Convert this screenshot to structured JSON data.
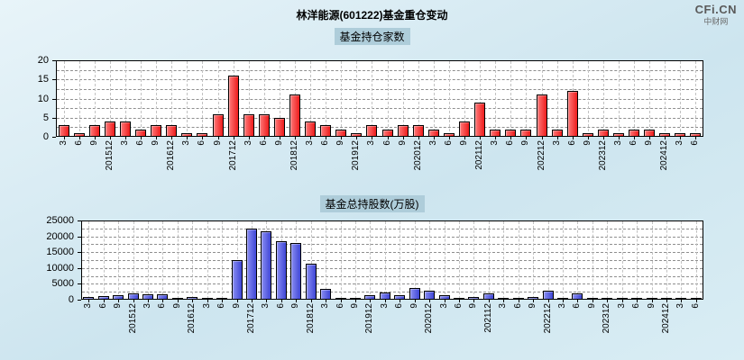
{
  "page": {
    "title": "林洋能源(601222)基金重仓变动",
    "watermark": {
      "line1": "CFi.CN",
      "line2": "中财网"
    }
  },
  "chart_data": [
    {
      "type": "bar",
      "title": "基金持仓家数",
      "color": "#ee1c1c",
      "color_light": "#ff7a7a",
      "border_color": "#000000",
      "ylim": [
        0,
        20
      ],
      "yticks": [
        0,
        5,
        10,
        15,
        20
      ],
      "grid": true,
      "legend": "none",
      "categories": [
        "3",
        "6",
        "9",
        "201512",
        "3",
        "6",
        "9",
        "201612",
        "3",
        "6",
        "9",
        "201712",
        "3",
        "6",
        "9",
        "201812",
        "3",
        "6",
        "9",
        "201912",
        "3",
        "6",
        "9",
        "202012",
        "3",
        "6",
        "9",
        "202112",
        "3",
        "6",
        "9",
        "202212",
        "3",
        "6",
        "9",
        "202312",
        "3",
        "6",
        "9",
        "202412",
        "3",
        "6"
      ],
      "values": [
        3,
        1,
        3,
        4,
        4,
        2,
        3,
        3,
        1,
        1,
        6,
        16,
        6,
        6,
        5,
        11,
        4,
        3,
        2,
        1,
        3,
        2,
        3,
        3,
        2,
        1,
        4,
        9,
        2,
        2,
        2,
        11,
        2,
        12,
        1,
        2,
        1,
        2,
        2,
        1,
        1,
        1
      ]
    },
    {
      "type": "bar",
      "title": "基金总持股数(万股)",
      "color": "#3f46d6",
      "color_light": "#8a8ef2",
      "border_color": "#000000",
      "ylim": [
        0,
        25000
      ],
      "yticks": [
        0,
        5000,
        10000,
        15000,
        20000,
        25000
      ],
      "grid": true,
      "legend": "none",
      "categories": [
        "3",
        "6",
        "9",
        "201512",
        "3",
        "6",
        "9",
        "201612",
        "3",
        "6",
        "9",
        "201712",
        "3",
        "6",
        "9",
        "201812",
        "3",
        "6",
        "9",
        "201912",
        "3",
        "6",
        "9",
        "202012",
        "3",
        "6",
        "9",
        "202112",
        "3",
        "6",
        "9",
        "202212",
        "3",
        "6",
        "9",
        "202312",
        "3",
        "6",
        "9",
        "202412",
        "3",
        "6"
      ],
      "values": [
        900,
        1100,
        1300,
        1900,
        1600,
        1600,
        500,
        900,
        400,
        600,
        12500,
        22500,
        21500,
        18500,
        18000,
        11500,
        3500,
        400,
        500,
        1400,
        2200,
        1500,
        3600,
        2900,
        1500,
        300,
        900,
        2100,
        400,
        500,
        900,
        2800,
        600,
        1900,
        400,
        300,
        500,
        300,
        200,
        150,
        100,
        200
      ]
    }
  ]
}
